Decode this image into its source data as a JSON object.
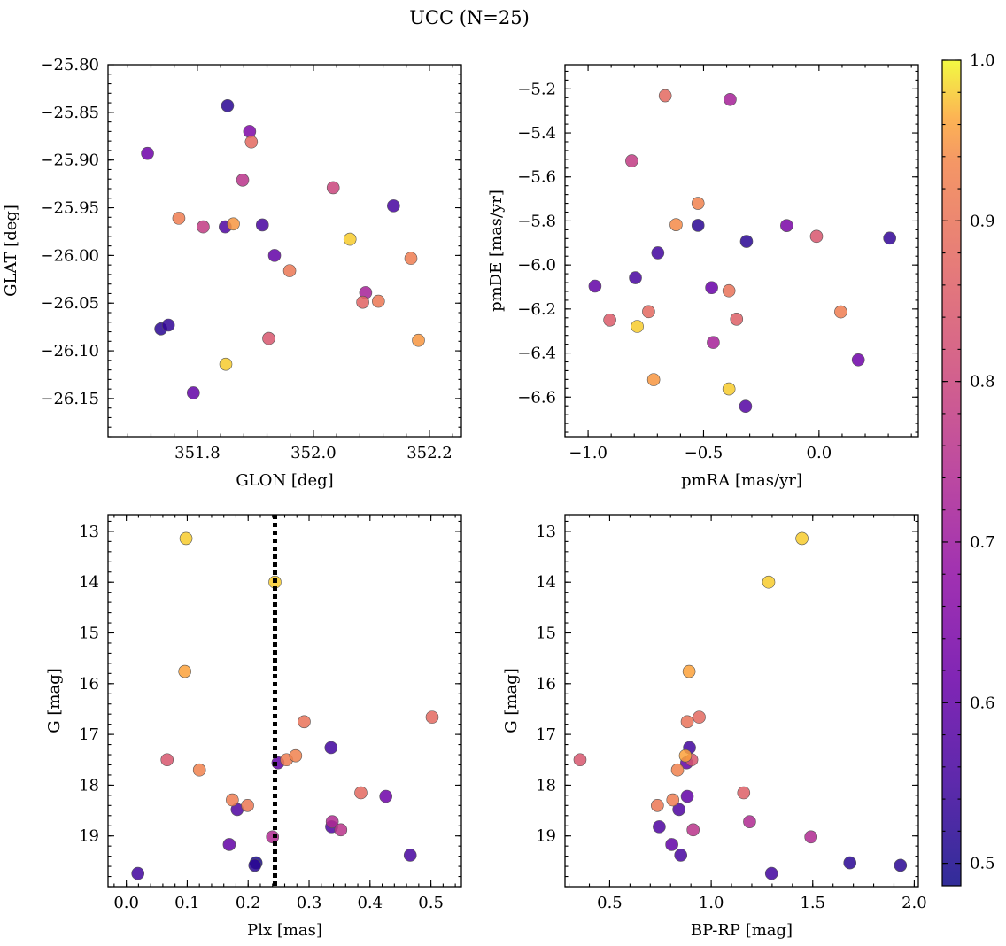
{
  "title": "UCC (N=25)",
  "colorbar": {
    "min": 0.486,
    "max": 1.0,
    "ticks": [
      0.5,
      0.6,
      0.7,
      0.8,
      0.9,
      1.0
    ],
    "tick_labels": [
      "0.5",
      "0.6",
      "0.7",
      "0.8",
      "0.9",
      "1.0"
    ],
    "colormap": "plasma"
  },
  "chart_data": [
    {
      "type": "scatter",
      "xlabel": "GLON [deg]",
      "ylabel": "GLAT [deg]",
      "xlim": [
        351.646,
        352.255
      ],
      "ylim": [
        -26.19,
        -25.8
      ],
      "y_inverted": false,
      "xticks": [
        351.8,
        352.0,
        352.2
      ],
      "xtick_labels": [
        "351.8",
        "352.0",
        "352.2"
      ],
      "yticks": [
        -26.15,
        -26.1,
        -26.05,
        -26.0,
        -25.95,
        -25.9,
        -25.85,
        -25.8
      ],
      "ytick_labels": [
        "−26.15",
        "−26.10",
        "−26.05",
        "−26.00",
        "−25.95",
        "−25.90",
        "−25.85",
        "−25.80"
      ],
      "vline": null,
      "points": [
        {
          "x": 351.852,
          "y": -25.843,
          "p": 0.52
        },
        {
          "x": 351.714,
          "y": -25.893,
          "p": 0.62
        },
        {
          "x": 351.89,
          "y": -25.87,
          "p": 0.65
        },
        {
          "x": 351.893,
          "y": -25.881,
          "p": 0.88
        },
        {
          "x": 351.878,
          "y": -25.921,
          "p": 0.76
        },
        {
          "x": 352.034,
          "y": -25.929,
          "p": 0.8
        },
        {
          "x": 351.768,
          "y": -25.961,
          "p": 0.92
        },
        {
          "x": 351.81,
          "y": -25.97,
          "p": 0.78
        },
        {
          "x": 351.848,
          "y": -25.97,
          "p": 0.57
        },
        {
          "x": 351.862,
          "y": -25.967,
          "p": 0.95
        },
        {
          "x": 351.912,
          "y": -25.968,
          "p": 0.56
        },
        {
          "x": 352.138,
          "y": -25.948,
          "p": 0.56
        },
        {
          "x": 352.063,
          "y": -25.983,
          "p": 0.98
        },
        {
          "x": 351.933,
          "y": -26.0,
          "p": 0.6
        },
        {
          "x": 351.959,
          "y": -26.016,
          "p": 0.91
        },
        {
          "x": 352.168,
          "y": -26.003,
          "p": 0.92
        },
        {
          "x": 352.09,
          "y": -26.039,
          "p": 0.72
        },
        {
          "x": 352.085,
          "y": -26.049,
          "p": 0.87
        },
        {
          "x": 352.112,
          "y": -26.048,
          "p": 0.91
        },
        {
          "x": 351.737,
          "y": -26.077,
          "p": 0.52
        },
        {
          "x": 351.75,
          "y": -26.073,
          "p": 0.53
        },
        {
          "x": 351.923,
          "y": -26.087,
          "p": 0.84
        },
        {
          "x": 352.181,
          "y": -26.089,
          "p": 0.95
        },
        {
          "x": 351.849,
          "y": -26.114,
          "p": 0.98
        },
        {
          "x": 351.793,
          "y": -26.144,
          "p": 0.6
        }
      ]
    },
    {
      "type": "scatter",
      "xlabel": "pmRA [mas/yr]",
      "ylabel": "pmDE [mas/yr]",
      "xlim": [
        -1.1,
        0.43
      ],
      "ylim": [
        -6.78,
        -5.09
      ],
      "y_inverted": false,
      "xticks": [
        -1.0,
        -0.5,
        0.0
      ],
      "xtick_labels": [
        "−1.0",
        "−0.5",
        "0.0"
      ],
      "yticks": [
        -6.6,
        -6.4,
        -6.2,
        -6.0,
        -5.8,
        -5.6,
        -5.4,
        -5.2
      ],
      "ytick_labels": [
        "−6.6",
        "−6.4",
        "−6.2",
        "−6.0",
        "−5.8",
        "−5.6",
        "−5.4",
        "−5.2"
      ],
      "vline": null,
      "points": [
        {
          "x": -0.666,
          "y": -5.231,
          "p": 0.88
        },
        {
          "x": -0.385,
          "y": -5.248,
          "p": 0.72
        },
        {
          "x": -0.811,
          "y": -5.527,
          "p": 0.78
        },
        {
          "x": -0.524,
          "y": -5.72,
          "p": 0.93
        },
        {
          "x": -0.619,
          "y": -5.817,
          "p": 0.94
        },
        {
          "x": -0.524,
          "y": -5.82,
          "p": 0.52
        },
        {
          "x": -0.314,
          "y": -5.893,
          "p": 0.52
        },
        {
          "x": -0.14,
          "y": -5.821,
          "p": 0.64
        },
        {
          "x": -0.011,
          "y": -5.87,
          "p": 0.84
        },
        {
          "x": 0.306,
          "y": -5.878,
          "p": 0.53
        },
        {
          "x": -0.698,
          "y": -5.945,
          "p": 0.55
        },
        {
          "x": -0.795,
          "y": -6.058,
          "p": 0.56
        },
        {
          "x": -0.97,
          "y": -6.096,
          "p": 0.6
        },
        {
          "x": -0.465,
          "y": -6.103,
          "p": 0.61
        },
        {
          "x": -0.39,
          "y": -6.117,
          "p": 0.9
        },
        {
          "x": -0.906,
          "y": -6.25,
          "p": 0.85
        },
        {
          "x": -0.738,
          "y": -6.212,
          "p": 0.88
        },
        {
          "x": -0.787,
          "y": -6.279,
          "p": 0.98
        },
        {
          "x": -0.357,
          "y": -6.246,
          "p": 0.86
        },
        {
          "x": 0.094,
          "y": -6.213,
          "p": 0.92
        },
        {
          "x": -0.458,
          "y": -6.352,
          "p": 0.72
        },
        {
          "x": 0.17,
          "y": -6.431,
          "p": 0.62
        },
        {
          "x": -0.716,
          "y": -6.521,
          "p": 0.95
        },
        {
          "x": -0.39,
          "y": -6.563,
          "p": 0.98
        },
        {
          "x": -0.318,
          "y": -6.642,
          "p": 0.58
        }
      ]
    },
    {
      "type": "scatter",
      "xlabel": "Plx [mas]",
      "ylabel": "G [mag]",
      "xlim": [
        -0.03,
        0.55
      ],
      "ylim": [
        12.67,
        20.0
      ],
      "y_inverted": true,
      "xticks": [
        0.0,
        0.1,
        0.2,
        0.3,
        0.4,
        0.5
      ],
      "xtick_labels": [
        "0.0",
        "0.1",
        "0.2",
        "0.3",
        "0.4",
        "0.5"
      ],
      "yticks": [
        13,
        14,
        15,
        16,
        17,
        18,
        19
      ],
      "ytick_labels": [
        "13",
        "14",
        "15",
        "16",
        "17",
        "18",
        "19"
      ],
      "vline": 0.244,
      "points": [
        {
          "x": 0.098,
          "y": 13.14,
          "p": 0.98
        },
        {
          "x": 0.244,
          "y": 14.0,
          "p": 0.98
        },
        {
          "x": 0.096,
          "y": 15.76,
          "p": 0.96
        },
        {
          "x": 0.502,
          "y": 16.66,
          "p": 0.88
        },
        {
          "x": 0.292,
          "y": 16.75,
          "p": 0.9
        },
        {
          "x": 0.336,
          "y": 17.26,
          "p": 0.55
        },
        {
          "x": 0.067,
          "y": 17.5,
          "p": 0.84
        },
        {
          "x": 0.249,
          "y": 17.56,
          "p": 0.6
        },
        {
          "x": 0.263,
          "y": 17.5,
          "p": 0.92
        },
        {
          "x": 0.278,
          "y": 17.42,
          "p": 0.93
        },
        {
          "x": 0.12,
          "y": 17.7,
          "p": 0.93
        },
        {
          "x": 0.385,
          "y": 18.15,
          "p": 0.88
        },
        {
          "x": 0.426,
          "y": 18.22,
          "p": 0.62
        },
        {
          "x": 0.174,
          "y": 18.29,
          "p": 0.92
        },
        {
          "x": 0.199,
          "y": 18.4,
          "p": 0.91
        },
        {
          "x": 0.182,
          "y": 18.48,
          "p": 0.57
        },
        {
          "x": 0.338,
          "y": 18.72,
          "p": 0.74
        },
        {
          "x": 0.337,
          "y": 18.82,
          "p": 0.57
        },
        {
          "x": 0.352,
          "y": 18.88,
          "p": 0.76
        },
        {
          "x": 0.24,
          "y": 19.02,
          "p": 0.74
        },
        {
          "x": 0.169,
          "y": 19.17,
          "p": 0.6
        },
        {
          "x": 0.466,
          "y": 19.38,
          "p": 0.56
        },
        {
          "x": 0.213,
          "y": 19.53,
          "p": 0.5
        },
        {
          "x": 0.211,
          "y": 19.58,
          "p": 0.52
        },
        {
          "x": 0.019,
          "y": 19.74,
          "p": 0.55
        }
      ]
    },
    {
      "type": "scatter",
      "xlabel": "BP-RP [mag]",
      "ylabel": "G [mag]",
      "xlim": [
        0.28,
        2.02
      ],
      "ylim": [
        12.67,
        20.0
      ],
      "y_inverted": true,
      "xticks": [
        0.5,
        1.0,
        1.5,
        2.0
      ],
      "xtick_labels": [
        "0.5",
        "1.0",
        "1.5",
        "2.0"
      ],
      "yticks": [
        13,
        14,
        15,
        16,
        17,
        18,
        19
      ],
      "ytick_labels": [
        "13",
        "14",
        "15",
        "16",
        "17",
        "18",
        "19"
      ],
      "vline": null,
      "points": [
        {
          "x": 1.447,
          "y": 13.14,
          "p": 0.98
        },
        {
          "x": 1.283,
          "y": 14.0,
          "p": 0.98
        },
        {
          "x": 0.891,
          "y": 15.76,
          "p": 0.96
        },
        {
          "x": 0.941,
          "y": 16.66,
          "p": 0.88
        },
        {
          "x": 0.882,
          "y": 16.75,
          "p": 0.9
        },
        {
          "x": 0.893,
          "y": 17.26,
          "p": 0.55
        },
        {
          "x": 0.354,
          "y": 17.5,
          "p": 0.84
        },
        {
          "x": 0.879,
          "y": 17.56,
          "p": 0.6
        },
        {
          "x": 0.904,
          "y": 17.5,
          "p": 0.84
        },
        {
          "x": 0.873,
          "y": 17.42,
          "p": 0.96
        },
        {
          "x": 0.834,
          "y": 17.7,
          "p": 0.93
        },
        {
          "x": 1.16,
          "y": 18.15,
          "p": 0.86
        },
        {
          "x": 0.882,
          "y": 18.22,
          "p": 0.6
        },
        {
          "x": 0.811,
          "y": 18.29,
          "p": 0.92
        },
        {
          "x": 0.735,
          "y": 18.4,
          "p": 0.91
        },
        {
          "x": 0.841,
          "y": 18.48,
          "p": 0.57
        },
        {
          "x": 1.189,
          "y": 18.72,
          "p": 0.74
        },
        {
          "x": 0.744,
          "y": 18.82,
          "p": 0.57
        },
        {
          "x": 0.911,
          "y": 18.88,
          "p": 0.76
        },
        {
          "x": 1.491,
          "y": 19.02,
          "p": 0.74
        },
        {
          "x": 0.806,
          "y": 19.17,
          "p": 0.6
        },
        {
          "x": 0.85,
          "y": 19.38,
          "p": 0.56
        },
        {
          "x": 1.683,
          "y": 19.53,
          "p": 0.52
        },
        {
          "x": 1.932,
          "y": 19.58,
          "p": 0.52
        },
        {
          "x": 1.297,
          "y": 19.74,
          "p": 0.55
        }
      ]
    }
  ]
}
